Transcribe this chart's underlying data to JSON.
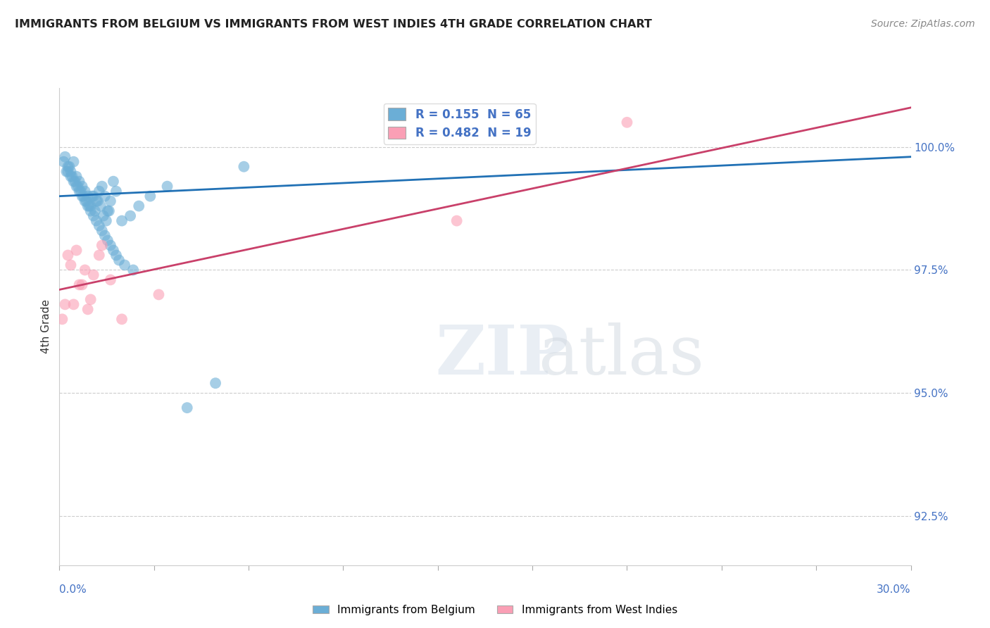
{
  "title": "IMMIGRANTS FROM BELGIUM VS IMMIGRANTS FROM WEST INDIES 4TH GRADE CORRELATION CHART",
  "source": "Source: ZipAtlas.com",
  "ylabel": "4th Grade",
  "yticks": [
    92.5,
    95.0,
    97.5,
    100.0
  ],
  "ytick_labels": [
    "92.5%",
    "95.0%",
    "97.5%",
    "100.0%"
  ],
  "xlim": [
    0.0,
    30.0
  ],
  "ylim": [
    91.5,
    101.2
  ],
  "legend_r1": "R = 0.155  N = 65",
  "legend_r2": "R = 0.482  N = 19",
  "blue_color": "#6baed6",
  "pink_color": "#fa9fb5",
  "blue_line_color": "#2171b5",
  "pink_line_color": "#c9406a",
  "background_color": "#ffffff",
  "blue_scatter_x": [
    0.2,
    0.3,
    0.4,
    0.5,
    0.6,
    0.7,
    0.8,
    0.9,
    1.0,
    1.1,
    1.2,
    1.3,
    1.4,
    1.5,
    1.6,
    1.7,
    1.8,
    1.9,
    2.0,
    2.2,
    2.5,
    2.8,
    3.2,
    3.8,
    4.5,
    5.5,
    6.5,
    0.15,
    0.25,
    0.35,
    0.45,
    0.55,
    0.65,
    0.75,
    0.85,
    0.95,
    1.05,
    1.15,
    1.25,
    1.35,
    1.45,
    1.55,
    1.65,
    1.75,
    0.3,
    0.4,
    0.5,
    0.6,
    0.7,
    0.8,
    0.9,
    1.0,
    1.1,
    1.2,
    1.3,
    1.4,
    1.5,
    1.6,
    1.7,
    1.8,
    1.9,
    2.0,
    2.1,
    2.3,
    2.6
  ],
  "blue_scatter_y": [
    99.8,
    99.6,
    99.5,
    99.7,
    99.4,
    99.3,
    99.2,
    99.1,
    99.0,
    98.8,
    99.0,
    98.9,
    99.1,
    99.2,
    99.0,
    98.7,
    98.9,
    99.3,
    99.1,
    98.5,
    98.6,
    98.8,
    99.0,
    99.2,
    94.7,
    95.2,
    99.6,
    99.7,
    99.5,
    99.6,
    99.4,
    99.3,
    99.2,
    99.1,
    99.0,
    98.9,
    98.8,
    99.0,
    98.7,
    98.9,
    98.8,
    98.6,
    98.5,
    98.7,
    99.5,
    99.4,
    99.3,
    99.2,
    99.1,
    99.0,
    98.9,
    98.8,
    98.7,
    98.6,
    98.5,
    98.4,
    98.3,
    98.2,
    98.1,
    98.0,
    97.9,
    97.8,
    97.7,
    97.6,
    97.5
  ],
  "pink_scatter_x": [
    0.1,
    0.3,
    0.5,
    0.7,
    0.9,
    1.1,
    1.4,
    1.8,
    2.2,
    3.5,
    0.2,
    0.4,
    0.6,
    0.8,
    1.0,
    1.2,
    1.5,
    20.0,
    14.0
  ],
  "pink_scatter_y": [
    96.5,
    97.8,
    96.8,
    97.2,
    97.5,
    96.9,
    97.8,
    97.3,
    96.5,
    97.0,
    96.8,
    97.6,
    97.9,
    97.2,
    96.7,
    97.4,
    98.0,
    100.5,
    98.5
  ],
  "blue_trend_x": [
    0.0,
    30.0
  ],
  "blue_trend_y": [
    99.0,
    99.8
  ],
  "pink_trend_x": [
    0.0,
    30.0
  ],
  "pink_trend_y": [
    97.1,
    100.8
  ]
}
